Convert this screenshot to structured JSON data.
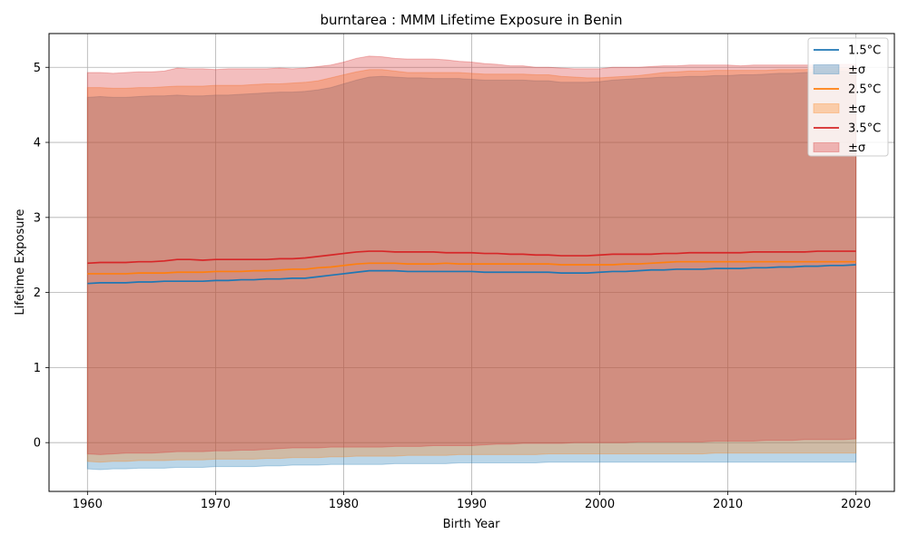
{
  "chart_data": {
    "type": "area",
    "title": "burntarea : MMM Lifetime Exposure in Benin",
    "xlabel": "Birth Year",
    "ylabel": "Lifetime Exposure",
    "xlim": [
      1957,
      2023
    ],
    "ylim": [
      -0.65,
      5.45
    ],
    "xticks": [
      1960,
      1970,
      1980,
      1990,
      2000,
      2010,
      2020
    ],
    "yticks": [
      0,
      1,
      2,
      3,
      4,
      5
    ],
    "grid": true,
    "legend_position": "top-right",
    "x": [
      1960,
      1961,
      1962,
      1963,
      1964,
      1965,
      1966,
      1967,
      1968,
      1969,
      1970,
      1971,
      1972,
      1973,
      1974,
      1975,
      1976,
      1977,
      1978,
      1979,
      1980,
      1981,
      1982,
      1983,
      1984,
      1985,
      1986,
      1987,
      1988,
      1989,
      1990,
      1991,
      1992,
      1993,
      1994,
      1995,
      1996,
      1997,
      1998,
      1999,
      2000,
      2001,
      2002,
      2003,
      2004,
      2005,
      2006,
      2007,
      2008,
      2009,
      2010,
      2011,
      2012,
      2013,
      2014,
      2015,
      2016,
      2017,
      2018,
      2019,
      2020
    ],
    "series": [
      {
        "name": "1.5°C",
        "band_label": "±σ",
        "color": "#1f77b4",
        "mean": [
          2.12,
          2.13,
          2.13,
          2.13,
          2.14,
          2.14,
          2.15,
          2.15,
          2.15,
          2.15,
          2.16,
          2.16,
          2.17,
          2.17,
          2.18,
          2.18,
          2.19,
          2.19,
          2.21,
          2.23,
          2.25,
          2.27,
          2.29,
          2.29,
          2.29,
          2.28,
          2.28,
          2.28,
          2.28,
          2.28,
          2.28,
          2.27,
          2.27,
          2.27,
          2.27,
          2.27,
          2.27,
          2.26,
          2.26,
          2.26,
          2.27,
          2.28,
          2.28,
          2.29,
          2.3,
          2.3,
          2.31,
          2.31,
          2.31,
          2.32,
          2.32,
          2.32,
          2.33,
          2.33,
          2.34,
          2.34,
          2.35,
          2.35,
          2.36,
          2.36,
          2.37
        ],
        "upper": [
          4.6,
          4.61,
          4.6,
          4.6,
          4.61,
          4.62,
          4.62,
          4.63,
          4.62,
          4.62,
          4.63,
          4.63,
          4.64,
          4.65,
          4.66,
          4.67,
          4.67,
          4.68,
          4.7,
          4.73,
          4.78,
          4.83,
          4.87,
          4.88,
          4.87,
          4.86,
          4.86,
          4.85,
          4.85,
          4.85,
          4.84,
          4.83,
          4.83,
          4.83,
          4.83,
          4.82,
          4.82,
          4.8,
          4.8,
          4.8,
          4.81,
          4.83,
          4.84,
          4.85,
          4.86,
          4.87,
          4.87,
          4.88,
          4.88,
          4.89,
          4.89,
          4.9,
          4.9,
          4.91,
          4.92,
          4.92,
          4.93,
          4.94,
          4.94,
          4.95,
          4.95
        ],
        "lower": [
          -0.35,
          -0.36,
          -0.35,
          -0.35,
          -0.34,
          -0.34,
          -0.34,
          -0.33,
          -0.33,
          -0.33,
          -0.32,
          -0.32,
          -0.32,
          -0.32,
          -0.31,
          -0.31,
          -0.3,
          -0.3,
          -0.3,
          -0.29,
          -0.29,
          -0.29,
          -0.29,
          -0.29,
          -0.28,
          -0.28,
          -0.28,
          -0.28,
          -0.28,
          -0.27,
          -0.27,
          -0.27,
          -0.27,
          -0.27,
          -0.27,
          -0.27,
          -0.26,
          -0.26,
          -0.26,
          -0.26,
          -0.26,
          -0.26,
          -0.26,
          -0.26,
          -0.26,
          -0.26,
          -0.26,
          -0.26,
          -0.26,
          -0.26,
          -0.26,
          -0.26,
          -0.26,
          -0.26,
          -0.26,
          -0.26,
          -0.26,
          -0.26,
          -0.26,
          -0.26,
          -0.26
        ]
      },
      {
        "name": "2.5°C",
        "band_label": "±σ",
        "color": "#ff7f0e",
        "mean": [
          2.25,
          2.25,
          2.25,
          2.25,
          2.26,
          2.26,
          2.26,
          2.27,
          2.27,
          2.27,
          2.28,
          2.28,
          2.28,
          2.29,
          2.29,
          2.3,
          2.31,
          2.31,
          2.33,
          2.34,
          2.36,
          2.38,
          2.39,
          2.39,
          2.39,
          2.38,
          2.38,
          2.38,
          2.39,
          2.38,
          2.38,
          2.38,
          2.38,
          2.38,
          2.38,
          2.38,
          2.38,
          2.37,
          2.37,
          2.37,
          2.37,
          2.37,
          2.38,
          2.38,
          2.39,
          2.4,
          2.41,
          2.41,
          2.41,
          2.41,
          2.41,
          2.41,
          2.41,
          2.41,
          2.41,
          2.41,
          2.41,
          2.41,
          2.41,
          2.41,
          2.41
        ],
        "upper": [
          4.73,
          4.73,
          4.72,
          4.72,
          4.73,
          4.73,
          4.74,
          4.75,
          4.75,
          4.75,
          4.76,
          4.76,
          4.76,
          4.77,
          4.78,
          4.78,
          4.79,
          4.8,
          4.82,
          4.86,
          4.9,
          4.94,
          4.97,
          4.97,
          4.95,
          4.93,
          4.93,
          4.93,
          4.93,
          4.93,
          4.92,
          4.91,
          4.91,
          4.91,
          4.91,
          4.9,
          4.9,
          4.88,
          4.87,
          4.86,
          4.86,
          4.87,
          4.88,
          4.89,
          4.91,
          4.93,
          4.94,
          4.95,
          4.95,
          4.96,
          4.96,
          4.96,
          4.96,
          4.96,
          4.97,
          4.97,
          4.97,
          4.98,
          4.98,
          4.98,
          4.98
        ],
        "lower": [
          -0.25,
          -0.26,
          -0.25,
          -0.25,
          -0.24,
          -0.24,
          -0.24,
          -0.23,
          -0.23,
          -0.23,
          -0.22,
          -0.22,
          -0.22,
          -0.22,
          -0.21,
          -0.21,
          -0.2,
          -0.2,
          -0.2,
          -0.19,
          -0.19,
          -0.18,
          -0.18,
          -0.18,
          -0.18,
          -0.17,
          -0.17,
          -0.17,
          -0.17,
          -0.16,
          -0.16,
          -0.16,
          -0.16,
          -0.16,
          -0.16,
          -0.16,
          -0.15,
          -0.15,
          -0.15,
          -0.15,
          -0.15,
          -0.15,
          -0.15,
          -0.15,
          -0.15,
          -0.15,
          -0.15,
          -0.15,
          -0.15,
          -0.14,
          -0.14,
          -0.14,
          -0.14,
          -0.14,
          -0.14,
          -0.14,
          -0.14,
          -0.14,
          -0.14,
          -0.14,
          -0.14
        ]
      },
      {
        "name": "3.5°C",
        "band_label": "±σ",
        "color": "#d62728",
        "mean": [
          2.39,
          2.4,
          2.4,
          2.4,
          2.41,
          2.41,
          2.42,
          2.44,
          2.44,
          2.43,
          2.44,
          2.44,
          2.44,
          2.44,
          2.44,
          2.45,
          2.45,
          2.46,
          2.48,
          2.5,
          2.52,
          2.54,
          2.55,
          2.55,
          2.54,
          2.54,
          2.54,
          2.54,
          2.53,
          2.53,
          2.53,
          2.52,
          2.52,
          2.51,
          2.51,
          2.5,
          2.5,
          2.49,
          2.49,
          2.49,
          2.5,
          2.51,
          2.51,
          2.51,
          2.51,
          2.52,
          2.52,
          2.53,
          2.53,
          2.53,
          2.53,
          2.53,
          2.54,
          2.54,
          2.54,
          2.54,
          2.54,
          2.55,
          2.55,
          2.55,
          2.55
        ],
        "upper": [
          4.93,
          4.93,
          4.92,
          4.93,
          4.94,
          4.94,
          4.95,
          4.99,
          4.98,
          4.98,
          4.97,
          4.98,
          4.98,
          4.98,
          4.98,
          4.99,
          4.98,
          4.99,
          5.01,
          5.03,
          5.07,
          5.12,
          5.15,
          5.14,
          5.12,
          5.11,
          5.11,
          5.11,
          5.1,
          5.08,
          5.07,
          5.05,
          5.04,
          5.02,
          5.02,
          5.0,
          5.0,
          4.99,
          4.98,
          4.98,
          4.98,
          5.0,
          5.0,
          5.0,
          5.01,
          5.02,
          5.02,
          5.03,
          5.03,
          5.03,
          5.03,
          5.02,
          5.03,
          5.03,
          5.03,
          5.03,
          5.03,
          5.03,
          5.04,
          5.04,
          5.04
        ],
        "lower": [
          -0.15,
          -0.16,
          -0.15,
          -0.14,
          -0.14,
          -0.14,
          -0.13,
          -0.12,
          -0.12,
          -0.12,
          -0.11,
          -0.11,
          -0.1,
          -0.1,
          -0.09,
          -0.08,
          -0.07,
          -0.07,
          -0.07,
          -0.06,
          -0.06,
          -0.06,
          -0.06,
          -0.06,
          -0.05,
          -0.05,
          -0.05,
          -0.04,
          -0.04,
          -0.04,
          -0.04,
          -0.03,
          -0.02,
          -0.02,
          -0.01,
          -0.01,
          -0.01,
          -0.01,
          0.0,
          0.0,
          0.0,
          0.0,
          0.0,
          0.01,
          0.01,
          0.01,
          0.01,
          0.01,
          0.01,
          0.02,
          0.02,
          0.02,
          0.02,
          0.03,
          0.03,
          0.03,
          0.04,
          0.04,
          0.04,
          0.04,
          0.05
        ]
      }
    ]
  }
}
